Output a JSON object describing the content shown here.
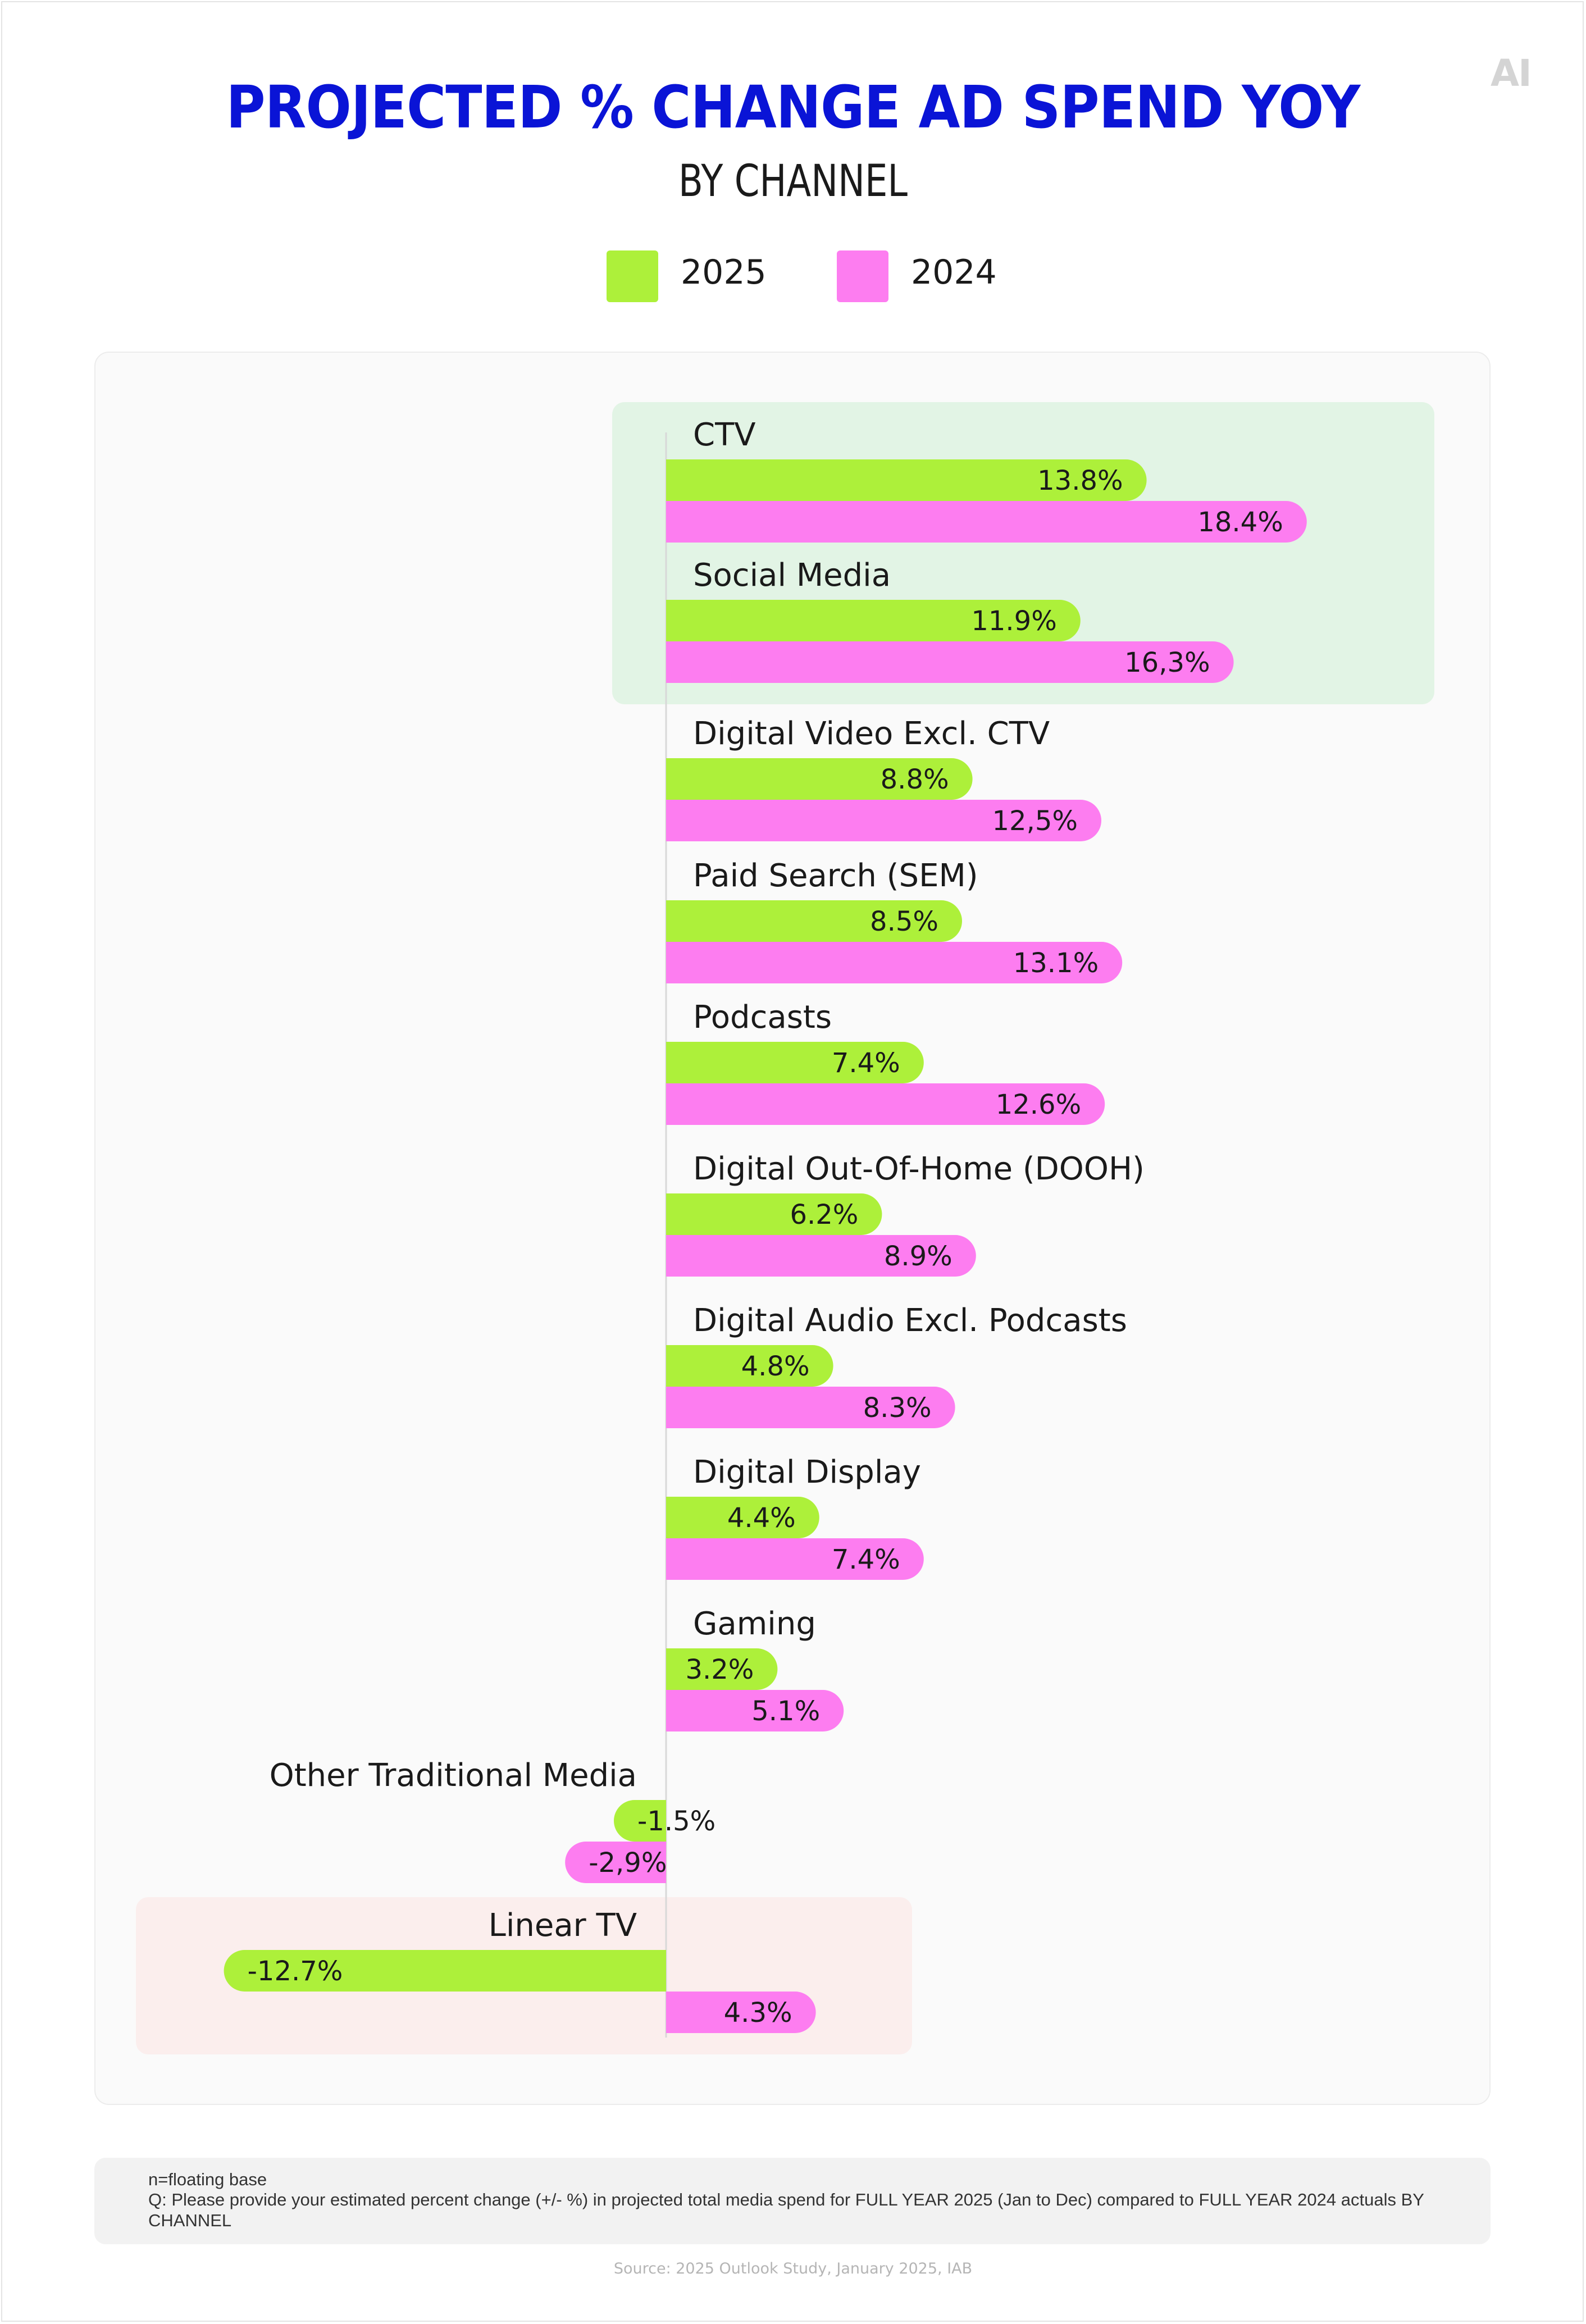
{
  "logo_text": "AI",
  "title": "PROJECTED % CHANGE AD SPEND YOY",
  "subtitle": "BY CHANNEL",
  "colors": {
    "title": "#0a14d6",
    "series_2025": "#adf03a",
    "series_2024": "#fd7df0",
    "highlight_positive": "#e2f4e5",
    "highlight_negative": "#fbeeed"
  },
  "legend": [
    {
      "label": "2025",
      "color": "#adf03a"
    },
    {
      "label": "2024",
      "color": "#fd7df0"
    }
  ],
  "chart_data": {
    "type": "bar",
    "orientation": "horizontal",
    "grid": false,
    "xlim": [
      -13.5,
      19.5
    ],
    "categories": [
      "CTV",
      "Social Media",
      "Digital Video Excl. CTV",
      "Paid Search (SEM)",
      "Podcasts",
      "Digital Out-Of-Home (DOOH)",
      "Digital Audio Excl. Podcasts",
      "Digital Display",
      "Gaming",
      "Other Traditional Media",
      "Linear TV"
    ],
    "series": [
      {
        "name": "2025",
        "color": "#adf03a",
        "values": [
          13.8,
          11.9,
          8.8,
          8.5,
          7.4,
          6.2,
          4.8,
          4.4,
          3.2,
          -1.5,
          -12.7
        ],
        "labels": [
          "13.8%",
          "11.9%",
          "8.8%",
          "8.5%",
          "7.4%",
          "6.2%",
          "4.8%",
          "4.4%",
          "3.2%",
          "-1.5%",
          "-12.7%"
        ]
      },
      {
        "name": "2024",
        "color": "#fd7df0",
        "values": [
          18.4,
          16.3,
          12.5,
          13.1,
          12.6,
          8.9,
          8.3,
          7.4,
          5.1,
          -2.9,
          4.3
        ],
        "labels": [
          "18.4%",
          "16,3%",
          "12,5%",
          "13.1%",
          "12.6%",
          "8.9%",
          "8.3%",
          "7.4%",
          "5.1%",
          "-2,9%",
          "4.3%"
        ]
      }
    ]
  },
  "notes": {
    "base": "n=floating base",
    "question": "Q: Please provide your estimated percent change (+/- %) in projected total media spend for FULL YEAR 2025 (Jan to Dec) compared to FULL YEAR 2024 actuals BY CHANNEL"
  },
  "source": "Source: 2025 Outlook Study, January 2025, IAB"
}
